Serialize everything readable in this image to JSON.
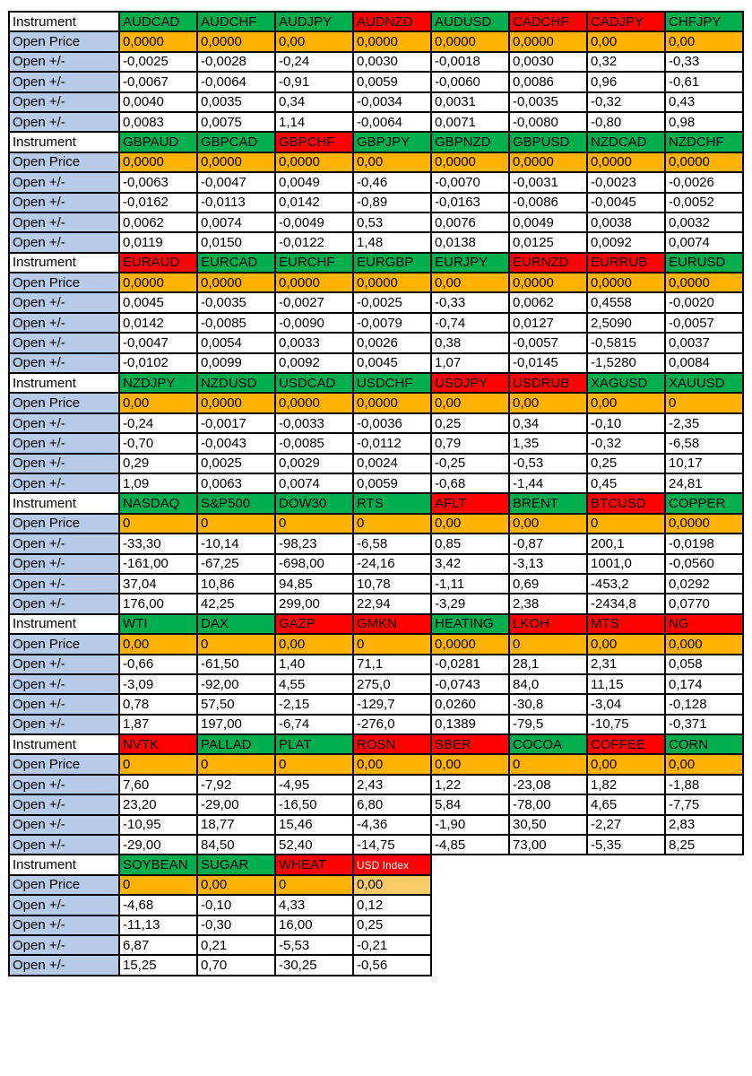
{
  "legend": {
    "instrument_label": "Instrument",
    "open_price_label": "Open Price",
    "open_change_label": "Open +/-"
  },
  "colors": {
    "header_green": "#00AE4D",
    "header_red": "#FF0000",
    "open_price_orange": "#FFB300",
    "open_price_orange_light": "#F9CB66",
    "row_label_blue": "#B7CBE9",
    "grid_border": "#000000"
  },
  "blocks": [
    {
      "headers": [
        {
          "label": "AUDCAD",
          "state": "green"
        },
        {
          "label": "AUDCHF",
          "state": "green"
        },
        {
          "label": "AUDJPY",
          "state": "green"
        },
        {
          "label": "AUDNZD",
          "state": "red"
        },
        {
          "label": "AUDUSD",
          "state": "green"
        },
        {
          "label": "CADCHF",
          "state": "red"
        },
        {
          "label": "CADJPY",
          "state": "red"
        },
        {
          "label": "CHFJPY",
          "state": "green"
        }
      ],
      "open_price": [
        "0,0000",
        "0,0000",
        "0,00",
        "0,0000",
        "0,0000",
        "0,0000",
        "0,00",
        "0,00"
      ],
      "changes": [
        [
          "-0,0025",
          "-0,0028",
          "-0,24",
          "0,0030",
          "-0,0018",
          "0,0030",
          "0,32",
          "-0,33"
        ],
        [
          "-0,0067",
          "-0,0064",
          "-0,91",
          "0,0059",
          "-0,0060",
          "0,0086",
          "0,96",
          "-0,61"
        ],
        [
          "0,0040",
          "0,0035",
          "0,34",
          "-0,0034",
          "0,0031",
          "-0,0035",
          "-0,32",
          "0,43"
        ],
        [
          "0,0083",
          "0,0075",
          "1,14",
          "-0,0064",
          "0,0071",
          "-0,0080",
          "-0,80",
          "0,98"
        ]
      ]
    },
    {
      "headers": [
        {
          "label": "GBPAUD",
          "state": "green"
        },
        {
          "label": "GBPCAD",
          "state": "green"
        },
        {
          "label": "GBPCHF",
          "state": "red"
        },
        {
          "label": "GBPJPY",
          "state": "green"
        },
        {
          "label": "GBPNZD",
          "state": "green"
        },
        {
          "label": "GBPUSD",
          "state": "green"
        },
        {
          "label": "NZDCAD",
          "state": "green"
        },
        {
          "label": "NZDCHF",
          "state": "green"
        }
      ],
      "open_price": [
        "0,0000",
        "0,0000",
        "0,0000",
        "0,00",
        "0,0000",
        "0,0000",
        "0,0000",
        "0,0000"
      ],
      "changes": [
        [
          "-0,0063",
          "-0,0047",
          "0,0049",
          "-0,46",
          "-0,0070",
          "-0,0031",
          "-0,0023",
          "-0,0026"
        ],
        [
          "-0,0162",
          "-0,0113",
          "0,0142",
          "-0,89",
          "-0,0163",
          "-0,0086",
          "-0,0045",
          "-0,0052"
        ],
        [
          "0,0062",
          "0,0074",
          "-0,0049",
          "0,53",
          "0,0076",
          "0,0049",
          "0,0038",
          "0,0032"
        ],
        [
          "0,0119",
          "0,0150",
          "-0,0122",
          "1,48",
          "0,0138",
          "0,0125",
          "0,0092",
          "0,0074"
        ]
      ]
    },
    {
      "headers": [
        {
          "label": "EURAUD",
          "state": "red"
        },
        {
          "label": "EURCAD",
          "state": "green"
        },
        {
          "label": "EURCHF",
          "state": "green"
        },
        {
          "label": "EURGBP",
          "state": "green"
        },
        {
          "label": "EURJPY",
          "state": "green"
        },
        {
          "label": "EURNZD",
          "state": "red"
        },
        {
          "label": "EURRUB",
          "state": "red"
        },
        {
          "label": "EURUSD",
          "state": "green"
        }
      ],
      "open_price": [
        "0,0000",
        "0,0000",
        "0,0000",
        "0,0000",
        "0,00",
        "0,0000",
        "0,0000",
        "0,0000"
      ],
      "changes": [
        [
          "0,0045",
          "-0,0035",
          "-0,0027",
          "-0,0025",
          "-0,33",
          "0,0062",
          "0,4558",
          "-0,0020"
        ],
        [
          "0,0142",
          "-0,0085",
          "-0,0090",
          "-0,0079",
          "-0,74",
          "0,0127",
          "2,5090",
          "-0,0057"
        ],
        [
          "-0,0047",
          "0,0054",
          "0,0033",
          "0,0026",
          "0,38",
          "-0,0057",
          "-0,5815",
          "0,0037"
        ],
        [
          "-0,0102",
          "0,0099",
          "0,0092",
          "0,0045",
          "1,07",
          "-0,0145",
          "-1,5280",
          "0,0084"
        ]
      ]
    },
    {
      "headers": [
        {
          "label": "NZDJPY",
          "state": "green"
        },
        {
          "label": "NZDUSD",
          "state": "green"
        },
        {
          "label": "USDCAD",
          "state": "green"
        },
        {
          "label": "USDCHF",
          "state": "green"
        },
        {
          "label": "USDJPY",
          "state": "red"
        },
        {
          "label": "USDRUB",
          "state": "red"
        },
        {
          "label": "XAGUSD",
          "state": "green"
        },
        {
          "label": "XAUUSD",
          "state": "green"
        }
      ],
      "open_price": [
        "0,00",
        "0,0000",
        "0,0000",
        "0,0000",
        "0,00",
        "0,00",
        "0,00",
        "0"
      ],
      "changes": [
        [
          "-0,24",
          "-0,0017",
          "-0,0033",
          "-0,0036",
          "0,25",
          "0,34",
          "-0,10",
          "-2,35"
        ],
        [
          "-0,70",
          "-0,0043",
          "-0,0085",
          "-0,0112",
          "0,79",
          "1,35",
          "-0,32",
          "-6,58"
        ],
        [
          "0,29",
          "0,0025",
          "0,0029",
          "0,0024",
          "-0,25",
          "-0,53",
          "0,25",
          "10,17"
        ],
        [
          "1,09",
          "0,0063",
          "0,0074",
          "0,0059",
          "-0,68",
          "-1,44",
          "0,45",
          "24,81"
        ]
      ]
    },
    {
      "headers": [
        {
          "label": "NASDAQ",
          "state": "green"
        },
        {
          "label": "S&P500",
          "state": "green"
        },
        {
          "label": "DOW30",
          "state": "green"
        },
        {
          "label": "RTS",
          "state": "green"
        },
        {
          "label": "AFLT",
          "state": "red"
        },
        {
          "label": "BRENT",
          "state": "green"
        },
        {
          "label": "BTCUSD",
          "state": "red"
        },
        {
          "label": "COPPER",
          "state": "green"
        }
      ],
      "open_price": [
        "0",
        "0",
        "0",
        "0",
        "0,00",
        "0,00",
        "0",
        "0,0000"
      ],
      "changes": [
        [
          "-33,30",
          "-10,14",
          "-98,23",
          "-6,58",
          "0,85",
          "-0,87",
          "200,1",
          "-0,0198"
        ],
        [
          "-161,00",
          "-67,25",
          "-698,00",
          "-24,16",
          "3,42",
          "-3,13",
          "1001,0",
          "-0,0560"
        ],
        [
          "37,04",
          "10,86",
          "94,85",
          "10,78",
          "-1,11",
          "0,69",
          "-453,2",
          "0,0292"
        ],
        [
          "176,00",
          "42,25",
          "299,00",
          "22,94",
          "-3,29",
          "2,38",
          "-2434,8",
          "0,0770"
        ]
      ]
    },
    {
      "headers": [
        {
          "label": "WTI",
          "state": "green"
        },
        {
          "label": "DAX",
          "state": "green"
        },
        {
          "label": "GAZP",
          "state": "red"
        },
        {
          "label": "GMKN",
          "state": "red"
        },
        {
          "label": "HEATING",
          "state": "green"
        },
        {
          "label": "LKOH",
          "state": "red"
        },
        {
          "label": "MTS",
          "state": "red"
        },
        {
          "label": "NG",
          "state": "red"
        }
      ],
      "open_price": [
        "0,00",
        "0",
        "0,00",
        "0",
        "0,0000",
        "0",
        "0,00",
        "0,000"
      ],
      "changes": [
        [
          "-0,66",
          "-61,50",
          "1,40",
          "71,1",
          "-0,0281",
          "28,1",
          "2,31",
          "0,058"
        ],
        [
          "-3,09",
          "-92,00",
          "4,55",
          "275,0",
          "-0,0743",
          "84,0",
          "11,15",
          "0,174"
        ],
        [
          "0,78",
          "57,50",
          "-2,15",
          "-129,7",
          "0,0260",
          "-30,8",
          "-3,04",
          "-0,128"
        ],
        [
          "1,87",
          "197,00",
          "-6,74",
          "-276,0",
          "0,1389",
          "-79,5",
          "-10,75",
          "-0,371"
        ]
      ]
    },
    {
      "headers": [
        {
          "label": "NVTK",
          "state": "red"
        },
        {
          "label": "PALLAD",
          "state": "green"
        },
        {
          "label": "PLAT",
          "state": "green"
        },
        {
          "label": "ROSN",
          "state": "red"
        },
        {
          "label": "SBER",
          "state": "red"
        },
        {
          "label": "COCOA",
          "state": "green"
        },
        {
          "label": "COFFEE",
          "state": "red"
        },
        {
          "label": "CORN",
          "state": "green"
        }
      ],
      "open_price": [
        "0",
        "0",
        "0",
        "0,00",
        "0,00",
        "0",
        "0,00",
        "0,00"
      ],
      "changes": [
        [
          "7,60",
          "-7,92",
          "-4,95",
          "2,43",
          "1,22",
          "-23,08",
          "1,82",
          "-1,88"
        ],
        [
          "23,20",
          "-29,00",
          "-16,50",
          "6,80",
          "5,84",
          "-78,00",
          "4,65",
          "-7,75"
        ],
        [
          "-10,95",
          "18,77",
          "15,46",
          "-4,36",
          "-1,90",
          "30,50",
          "-2,27",
          "2,83"
        ],
        [
          "-29,00",
          "84,50",
          "52,40",
          "-14,75",
          "-4,85",
          "73,00",
          "-5,35",
          "8,25"
        ]
      ]
    },
    {
      "headers": [
        {
          "label": "SOYBEAN",
          "state": "green"
        },
        {
          "label": "SUGAR",
          "state": "green"
        },
        {
          "label": "WHEAT",
          "state": "red"
        },
        {
          "label": "USD Index",
          "state": "red",
          "small": true
        }
      ],
      "open_price": [
        "0",
        "0,00",
        "0",
        "0,00"
      ],
      "light_price_cols": [
        3
      ],
      "changes": [
        [
          "-4,68",
          "-0,10",
          "4,33",
          "0,12"
        ],
        [
          "-11,13",
          "-0,30",
          "16,00",
          "0,25"
        ],
        [
          "6,87",
          "0,21",
          "-5,53",
          "-0,21"
        ],
        [
          "15,25",
          "0,70",
          "-30,25",
          "-0,56"
        ]
      ]
    }
  ]
}
